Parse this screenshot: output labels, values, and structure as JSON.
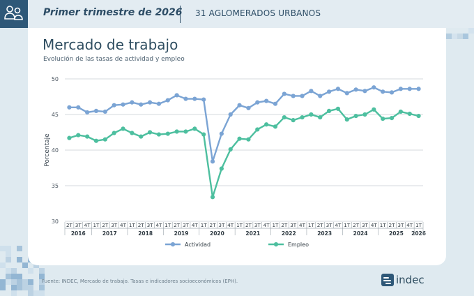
{
  "header": {
    "title": "Primer trimestre de 2026",
    "subtitle": "31 AGLOMERADOS URBANOS"
  },
  "card": {
    "title": "Mercado de trabajo",
    "subtitle": "Evolución de las tasas de actividad y empleo"
  },
  "source": "Fuente: INDEC, Mercado de trabajo. Tasas e indicadores socioeconómicos (EPH).",
  "brand": "indec",
  "colors": {
    "actividad": "#7ba4d4",
    "empleo": "#4dbf9f",
    "accent": "#2e5878"
  },
  "chart_data": {
    "type": "line",
    "title": "",
    "ylabel": "Porcentaje",
    "xlabel": "",
    "ylim": [
      30,
      50
    ],
    "yticks": [
      30,
      35,
      40,
      45,
      50
    ],
    "grid": true,
    "legend_position": "bottom",
    "quarters": [
      "2T",
      "3T",
      "4T",
      "1T",
      "2T",
      "3T",
      "4T",
      "1T",
      "2T",
      "3T",
      "4T",
      "1T",
      "2T",
      "3T",
      "4T",
      "1T",
      "2T",
      "3T",
      "4T",
      "1T",
      "2T",
      "3T",
      "4T",
      "1T",
      "2T",
      "3T",
      "4T",
      "1T",
      "2T",
      "3T",
      "4T",
      "1T",
      "2T",
      "3T",
      "4T",
      "1T",
      "2T",
      "3T",
      "4T",
      "1T"
    ],
    "years": [
      "2016",
      "2017",
      "2018",
      "2019",
      "2020",
      "2021",
      "2022",
      "2023",
      "2024",
      "2025",
      "2026"
    ],
    "year_quarter_counts": [
      3,
      4,
      4,
      4,
      4,
      4,
      4,
      4,
      4,
      4,
      1
    ],
    "series": [
      {
        "name": "Actividad",
        "values": [
          46.0,
          46.0,
          45.3,
          45.5,
          45.4,
          46.3,
          46.4,
          46.7,
          46.4,
          46.7,
          46.5,
          47.0,
          47.7,
          47.2,
          47.2,
          47.1,
          38.4,
          42.3,
          45.0,
          46.3,
          45.9,
          46.7,
          46.9,
          46.5,
          47.9,
          47.6,
          47.6,
          48.3,
          47.6,
          48.2,
          48.6,
          48.0,
          48.5,
          48.3,
          48.8,
          48.2,
          48.1,
          48.6,
          48.6,
          48.6
        ]
      },
      {
        "name": "Empleo",
        "values": [
          41.7,
          42.1,
          41.9,
          41.3,
          41.5,
          42.4,
          43.0,
          42.4,
          41.9,
          42.5,
          42.2,
          42.3,
          42.6,
          42.6,
          43.0,
          42.2,
          33.4,
          37.4,
          40.1,
          41.6,
          41.5,
          42.9,
          43.6,
          43.3,
          44.6,
          44.2,
          44.6,
          45.0,
          44.6,
          45.5,
          45.8,
          44.3,
          44.8,
          45.0,
          45.7,
          44.4,
          44.5,
          45.4,
          45.1,
          44.8
        ]
      }
    ]
  }
}
